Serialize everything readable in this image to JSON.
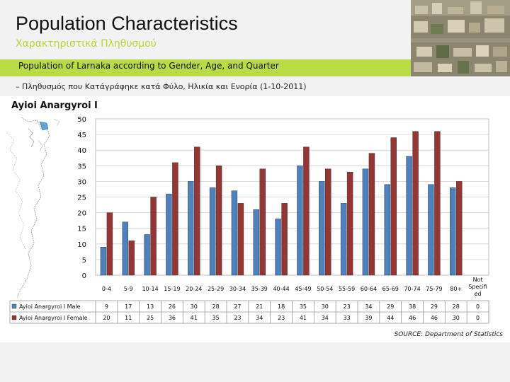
{
  "header": {
    "title": "Population Characteristics",
    "subtitle_greek": "Χαρακτηριστικά Πληθυσμού"
  },
  "banner": {
    "text": "Population of Larnaka according to Gender, Age, and Quarter"
  },
  "description_greek": "– Πληθυσμός που Κατάγράφηκε κατά Φύλο, Ηλικία και Ενορία (1-10-2011)",
  "area_name": "Ayioi Anargyroi I",
  "source": "SOURCE: Department of Statistics",
  "colors": {
    "male": "#4f81bd",
    "female": "#943634",
    "banner": "#b9dc46",
    "subtitle": "#b8d63a"
  },
  "chart_data": {
    "type": "bar",
    "categories": [
      "0-4",
      "5-9",
      "10-14",
      "15-19",
      "20-24",
      "25-29",
      "30-34",
      "35-39",
      "40-44",
      "45-49",
      "50-54",
      "55-59",
      "60-64",
      "65-69",
      "70-74",
      "75-79",
      "80+",
      "Not Specified"
    ],
    "series": [
      {
        "name": "Ayioi Anargyroi I Male",
        "values": [
          9,
          17,
          13,
          26,
          30,
          28,
          27,
          21,
          18,
          35,
          30,
          23,
          34,
          29,
          38,
          29,
          28,
          0
        ]
      },
      {
        "name": "Ayioi Anargyroi I Female",
        "values": [
          20,
          11,
          25,
          36,
          41,
          35,
          23,
          34,
          23,
          41,
          34,
          33,
          39,
          44,
          46,
          46,
          30,
          0
        ]
      }
    ],
    "ylim": [
      0,
      50
    ],
    "yticks": [
      0,
      5,
      10,
      15,
      20,
      25,
      30,
      35,
      40,
      45,
      50
    ],
    "grid": true,
    "legend": "data-table-left"
  }
}
